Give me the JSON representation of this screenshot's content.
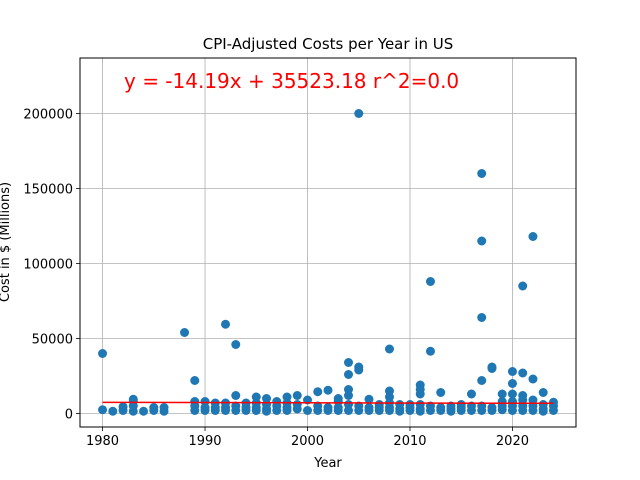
{
  "chart_data": {
    "type": "scatter",
    "title": "CPI-Adjusted Costs per Year in US",
    "xlabel": "Year",
    "ylabel": "Cost in $ (Millions)",
    "xlim": [
      1977.8,
      2026.2
    ],
    "ylim": [
      -9000,
      237000
    ],
    "xticks": [
      1980,
      1990,
      2000,
      2010,
      2020
    ],
    "yticks": [
      0,
      50000,
      100000,
      150000,
      200000
    ],
    "grid": true,
    "colors": {
      "points": "#1f77b4",
      "fit_line": "#ff0000",
      "annotation": "#ff0000"
    },
    "annotation": "y = -14.19x + 35523.18   r^2=0.0",
    "fit": {
      "slope": -14.19,
      "intercept": 35523.18,
      "x_range": [
        1980,
        2024
      ]
    },
    "points": [
      [
        1980,
        40000
      ],
      [
        1980,
        2500
      ],
      [
        1981,
        1500
      ],
      [
        1982,
        2000
      ],
      [
        1982,
        4500
      ],
      [
        1983,
        1500
      ],
      [
        1983,
        5000
      ],
      [
        1983,
        8000
      ],
      [
        1983,
        9500
      ],
      [
        1984,
        1500
      ],
      [
        1985,
        2000
      ],
      [
        1985,
        4000
      ],
      [
        1986,
        1500
      ],
      [
        1986,
        4000
      ],
      [
        1988,
        54000
      ],
      [
        1989,
        22000
      ],
      [
        1989,
        8000
      ],
      [
        1989,
        5000
      ],
      [
        1989,
        2000
      ],
      [
        1990,
        8000
      ],
      [
        1990,
        4000
      ],
      [
        1990,
        2000
      ],
      [
        1991,
        7000
      ],
      [
        1991,
        4000
      ],
      [
        1991,
        2000
      ],
      [
        1992,
        59500
      ],
      [
        1992,
        7000
      ],
      [
        1992,
        4000
      ],
      [
        1992,
        2000
      ],
      [
        1993,
        46000
      ],
      [
        1993,
        12000
      ],
      [
        1993,
        5000
      ],
      [
        1993,
        2000
      ],
      [
        1994,
        7000
      ],
      [
        1994,
        4000
      ],
      [
        1994,
        2000
      ],
      [
        1995,
        11000
      ],
      [
        1995,
        7000
      ],
      [
        1995,
        4000
      ],
      [
        1995,
        2000
      ],
      [
        1996,
        10000
      ],
      [
        1996,
        6000
      ],
      [
        1996,
        3000
      ],
      [
        1996,
        1500
      ],
      [
        1997,
        8000
      ],
      [
        1997,
        5000
      ],
      [
        1997,
        2000
      ],
      [
        1998,
        11000
      ],
      [
        1998,
        7000
      ],
      [
        1998,
        4000
      ],
      [
        1998,
        2000
      ],
      [
        1999,
        12000
      ],
      [
        1999,
        6000
      ],
      [
        1999,
        3000
      ],
      [
        2000,
        9000
      ],
      [
        2000,
        2000
      ],
      [
        2001,
        14500
      ],
      [
        2001,
        5000
      ],
      [
        2001,
        2000
      ],
      [
        2002,
        15500
      ],
      [
        2002,
        4000
      ],
      [
        2002,
        2000
      ],
      [
        2003,
        10000
      ],
      [
        2003,
        8000
      ],
      [
        2003,
        4000
      ],
      [
        2003,
        2000
      ],
      [
        2004,
        34000
      ],
      [
        2004,
        26000
      ],
      [
        2004,
        16000
      ],
      [
        2004,
        12000
      ],
      [
        2004,
        6000
      ],
      [
        2004,
        2000
      ],
      [
        2005,
        200000
      ],
      [
        2005,
        31000
      ],
      [
        2005,
        29000
      ],
      [
        2005,
        5000
      ],
      [
        2005,
        2000
      ],
      [
        2006,
        9500
      ],
      [
        2006,
        4000
      ],
      [
        2006,
        2000
      ],
      [
        2007,
        6000
      ],
      [
        2007,
        4000
      ],
      [
        2007,
        2000
      ],
      [
        2008,
        43000
      ],
      [
        2008,
        15000
      ],
      [
        2008,
        11000
      ],
      [
        2008,
        7000
      ],
      [
        2008,
        4000
      ],
      [
        2008,
        2000
      ],
      [
        2009,
        6000
      ],
      [
        2009,
        3000
      ],
      [
        2009,
        1500
      ],
      [
        2010,
        6000
      ],
      [
        2010,
        4000
      ],
      [
        2010,
        2000
      ],
      [
        2011,
        19000
      ],
      [
        2011,
        16000
      ],
      [
        2011,
        13000
      ],
      [
        2011,
        6000
      ],
      [
        2011,
        3000
      ],
      [
        2011,
        1500
      ],
      [
        2012,
        88000
      ],
      [
        2012,
        41500
      ],
      [
        2012,
        5000
      ],
      [
        2012,
        2000
      ],
      [
        2013,
        14000
      ],
      [
        2013,
        4000
      ],
      [
        2013,
        2000
      ],
      [
        2014,
        5000
      ],
      [
        2014,
        3000
      ],
      [
        2014,
        1500
      ],
      [
        2015,
        6000
      ],
      [
        2015,
        4000
      ],
      [
        2015,
        2000
      ],
      [
        2016,
        13000
      ],
      [
        2016,
        5000
      ],
      [
        2016,
        2000
      ],
      [
        2017,
        160000
      ],
      [
        2017,
        115000
      ],
      [
        2017,
        64000
      ],
      [
        2017,
        22000
      ],
      [
        2017,
        5000
      ],
      [
        2017,
        2000
      ],
      [
        2018,
        31000
      ],
      [
        2018,
        30000
      ],
      [
        2018,
        4000
      ],
      [
        2018,
        2000
      ],
      [
        2019,
        13000
      ],
      [
        2019,
        8000
      ],
      [
        2019,
        5000
      ],
      [
        2019,
        2500
      ],
      [
        2020,
        28000
      ],
      [
        2020,
        20000
      ],
      [
        2020,
        13000
      ],
      [
        2020,
        8000
      ],
      [
        2020,
        5000
      ],
      [
        2020,
        2000
      ],
      [
        2021,
        85000
      ],
      [
        2021,
        27000
      ],
      [
        2021,
        12000
      ],
      [
        2021,
        9000
      ],
      [
        2021,
        5000
      ],
      [
        2021,
        2000
      ],
      [
        2022,
        118000
      ],
      [
        2022,
        23000
      ],
      [
        2022,
        9000
      ],
      [
        2022,
        5000
      ],
      [
        2022,
        2000
      ],
      [
        2023,
        14000
      ],
      [
        2023,
        6000
      ],
      [
        2023,
        3000
      ],
      [
        2023,
        1500
      ],
      [
        2024,
        7500
      ],
      [
        2024,
        5000
      ],
      [
        2024,
        2000
      ]
    ]
  }
}
